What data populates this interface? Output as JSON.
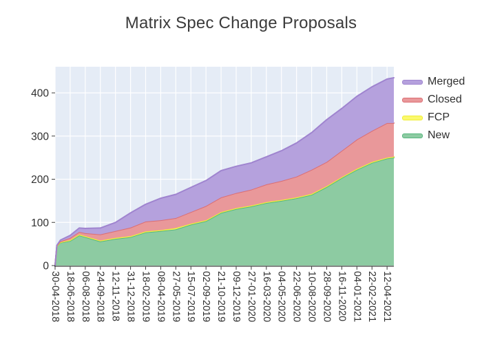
{
  "title": "Matrix Spec Change Proposals",
  "colors": {
    "figure_bg": "#ffffff",
    "plot_bg": "#e5ecf6",
    "grid": "#ffffff",
    "axis_line": "#3c3c3c",
    "tick_text": "#2f2f2f",
    "title_text": "#3b3b3b"
  },
  "chart_data": {
    "type": "area",
    "stacked": true,
    "title": "Matrix Spec Change Proposals",
    "xlabel": "",
    "ylabel": "",
    "grid": true,
    "legend_position": "right",
    "y_ticks": [
      0,
      100,
      200,
      300,
      400
    ],
    "y_range": [
      0,
      462
    ],
    "x_tick_labels": [
      "30-04-2018",
      "18-06-2018",
      "06-08-2018",
      "24-09-2018",
      "12-11-2018",
      "31-12-2018",
      "18-02-2019",
      "08-04-2019",
      "27-05-2019",
      "15-07-2019",
      "02-09-2019",
      "21-10-2019",
      "09-12-2019",
      "27-01-2020",
      "16-03-2020",
      "04-05-2020",
      "22-06-2020",
      "10-08-2020",
      "28-09-2020",
      "16-11-2020",
      "04-01-2021",
      "22-02-2021",
      "12-04-2021"
    ],
    "t": [
      0,
      0.12,
      0.35,
      1,
      1.6,
      2,
      3,
      4,
      5,
      6,
      7,
      8,
      9,
      10,
      11,
      12,
      13,
      14,
      15,
      16,
      17,
      18,
      19,
      20,
      21,
      22,
      22.45
    ],
    "t_max": 22.45,
    "series": [
      {
        "name": "New",
        "fill": "#8dcba2",
        "line": "#55b67d",
        "values": [
          0,
          45,
          53,
          57,
          70,
          66,
          56,
          62,
          66,
          77,
          80,
          84,
          95,
          103,
          122,
          131,
          137,
          145,
          150,
          156,
          164,
          182,
          203,
          222,
          238,
          248,
          250
        ]
      },
      {
        "name": "FCP",
        "fill": "#fbf96d",
        "line": "#f0ee33",
        "values": [
          0,
          0,
          1,
          2,
          2,
          2,
          2,
          2,
          2,
          2,
          2,
          3,
          2,
          2,
          2,
          2,
          2,
          2,
          2,
          2,
          2,
          2,
          2,
          2,
          2,
          2,
          2
        ]
      },
      {
        "name": "Closed",
        "fill": "#e9989a",
        "line": "#db6d72",
        "values": [
          0,
          1,
          2,
          5,
          6,
          7,
          14,
          16,
          20,
          23,
          23,
          23,
          27,
          33,
          34,
          35,
          37,
          41,
          44,
          48,
          56,
          56,
          61,
          68,
          72,
          80,
          78
        ]
      },
      {
        "name": "Merged",
        "fill": "#b5a1dd",
        "line": "#9f84cf",
        "values": [
          0,
          1,
          3,
          6,
          9,
          11,
          15,
          20,
          34,
          40,
          51,
          55,
          57,
          59,
          62,
          62,
          62,
          64,
          70,
          78,
          86,
          98,
          98,
          100,
          102,
          102,
          105
        ]
      }
    ],
    "legend_labels": [
      "Merged",
      "Closed",
      "FCP",
      "New"
    ],
    "legend_series_index": [
      3,
      2,
      1,
      0
    ]
  }
}
